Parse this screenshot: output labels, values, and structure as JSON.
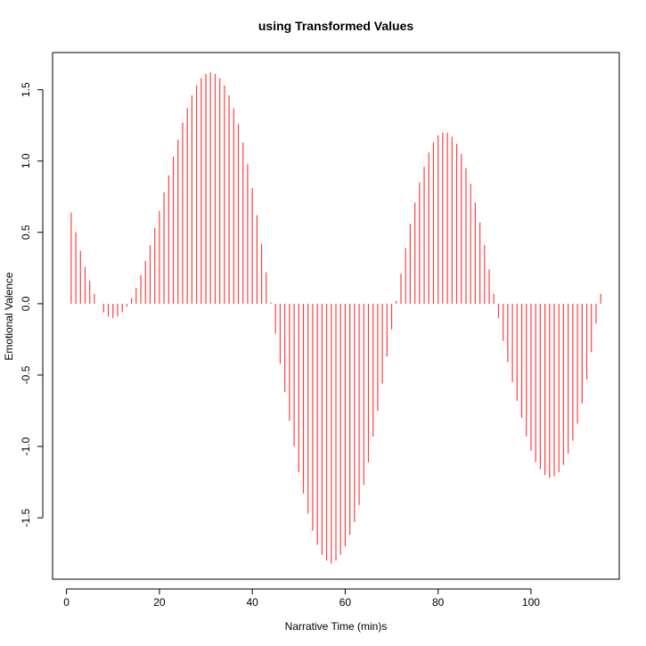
{
  "chart_data": {
    "type": "bar",
    "title": "using Transformed Values",
    "xlabel": "Narrative Time (min)s",
    "ylabel": "Emotional Valence",
    "xlim": [
      -3,
      119
    ],
    "ylim": [
      -1.93,
      1.76
    ],
    "xticks": [
      0,
      20,
      40,
      60,
      80,
      100
    ],
    "yticks": [
      -1.5,
      -1.0,
      -0.5,
      0.0,
      0.5,
      1.0,
      1.5
    ],
    "ytick_labels": [
      "-1.5",
      "-1.0",
      "-0.5",
      "0.0",
      "0.5",
      "1.0",
      "1.5"
    ],
    "bar_color": "#ff4040",
    "grid": false,
    "legend": "none",
    "x": [
      1,
      2,
      3,
      4,
      5,
      6,
      7,
      8,
      9,
      10,
      11,
      12,
      13,
      14,
      15,
      16,
      17,
      18,
      19,
      20,
      21,
      22,
      23,
      24,
      25,
      26,
      27,
      28,
      29,
      30,
      31,
      32,
      33,
      34,
      35,
      36,
      37,
      38,
      39,
      40,
      41,
      42,
      43,
      44,
      45,
      46,
      47,
      48,
      49,
      50,
      51,
      52,
      53,
      54,
      55,
      56,
      57,
      58,
      59,
      60,
      61,
      62,
      63,
      64,
      65,
      66,
      67,
      68,
      69,
      70,
      71,
      72,
      73,
      74,
      75,
      76,
      77,
      78,
      79,
      80,
      81,
      82,
      83,
      84,
      85,
      86,
      87,
      88,
      89,
      90,
      91,
      92,
      93,
      94,
      95,
      96,
      97,
      98,
      99,
      100,
      101,
      102,
      103,
      104,
      105,
      106,
      107,
      108,
      109,
      110,
      111,
      112,
      113,
      114,
      115
    ],
    "values": [
      0.64,
      0.5,
      0.37,
      0.26,
      0.16,
      0.07,
      0.0,
      -0.06,
      -0.09,
      -0.1,
      -0.09,
      -0.06,
      -0.02,
      0.04,
      0.11,
      0.2,
      0.3,
      0.41,
      0.53,
      0.65,
      0.78,
      0.9,
      1.03,
      1.15,
      1.27,
      1.37,
      1.46,
      1.53,
      1.58,
      1.61,
      1.62,
      1.61,
      1.58,
      1.53,
      1.46,
      1.37,
      1.26,
      1.13,
      0.98,
      0.81,
      0.62,
      0.42,
      0.22,
      0.01,
      -0.21,
      -0.42,
      -0.62,
      -0.82,
      -1.0,
      -1.18,
      -1.33,
      -1.47,
      -1.59,
      -1.69,
      -1.76,
      -1.8,
      -1.82,
      -1.8,
      -1.76,
      -1.7,
      -1.62,
      -1.53,
      -1.41,
      -1.27,
      -1.11,
      -0.93,
      -0.75,
      -0.56,
      -0.37,
      -0.18,
      0.02,
      0.21,
      0.39,
      0.56,
      0.71,
      0.85,
      0.96,
      1.06,
      1.13,
      1.18,
      1.2,
      1.2,
      1.17,
      1.12,
      1.05,
      0.95,
      0.84,
      0.71,
      0.57,
      0.41,
      0.24,
      0.07,
      -0.1,
      -0.26,
      -0.41,
      -0.55,
      -0.68,
      -0.8,
      -0.93,
      -1.03,
      -1.11,
      -1.16,
      -1.2,
      -1.22,
      -1.21,
      -1.18,
      -1.13,
      -1.05,
      -0.96,
      -0.84,
      -0.7,
      -0.53,
      -0.34,
      -0.14,
      0.07
    ]
  }
}
